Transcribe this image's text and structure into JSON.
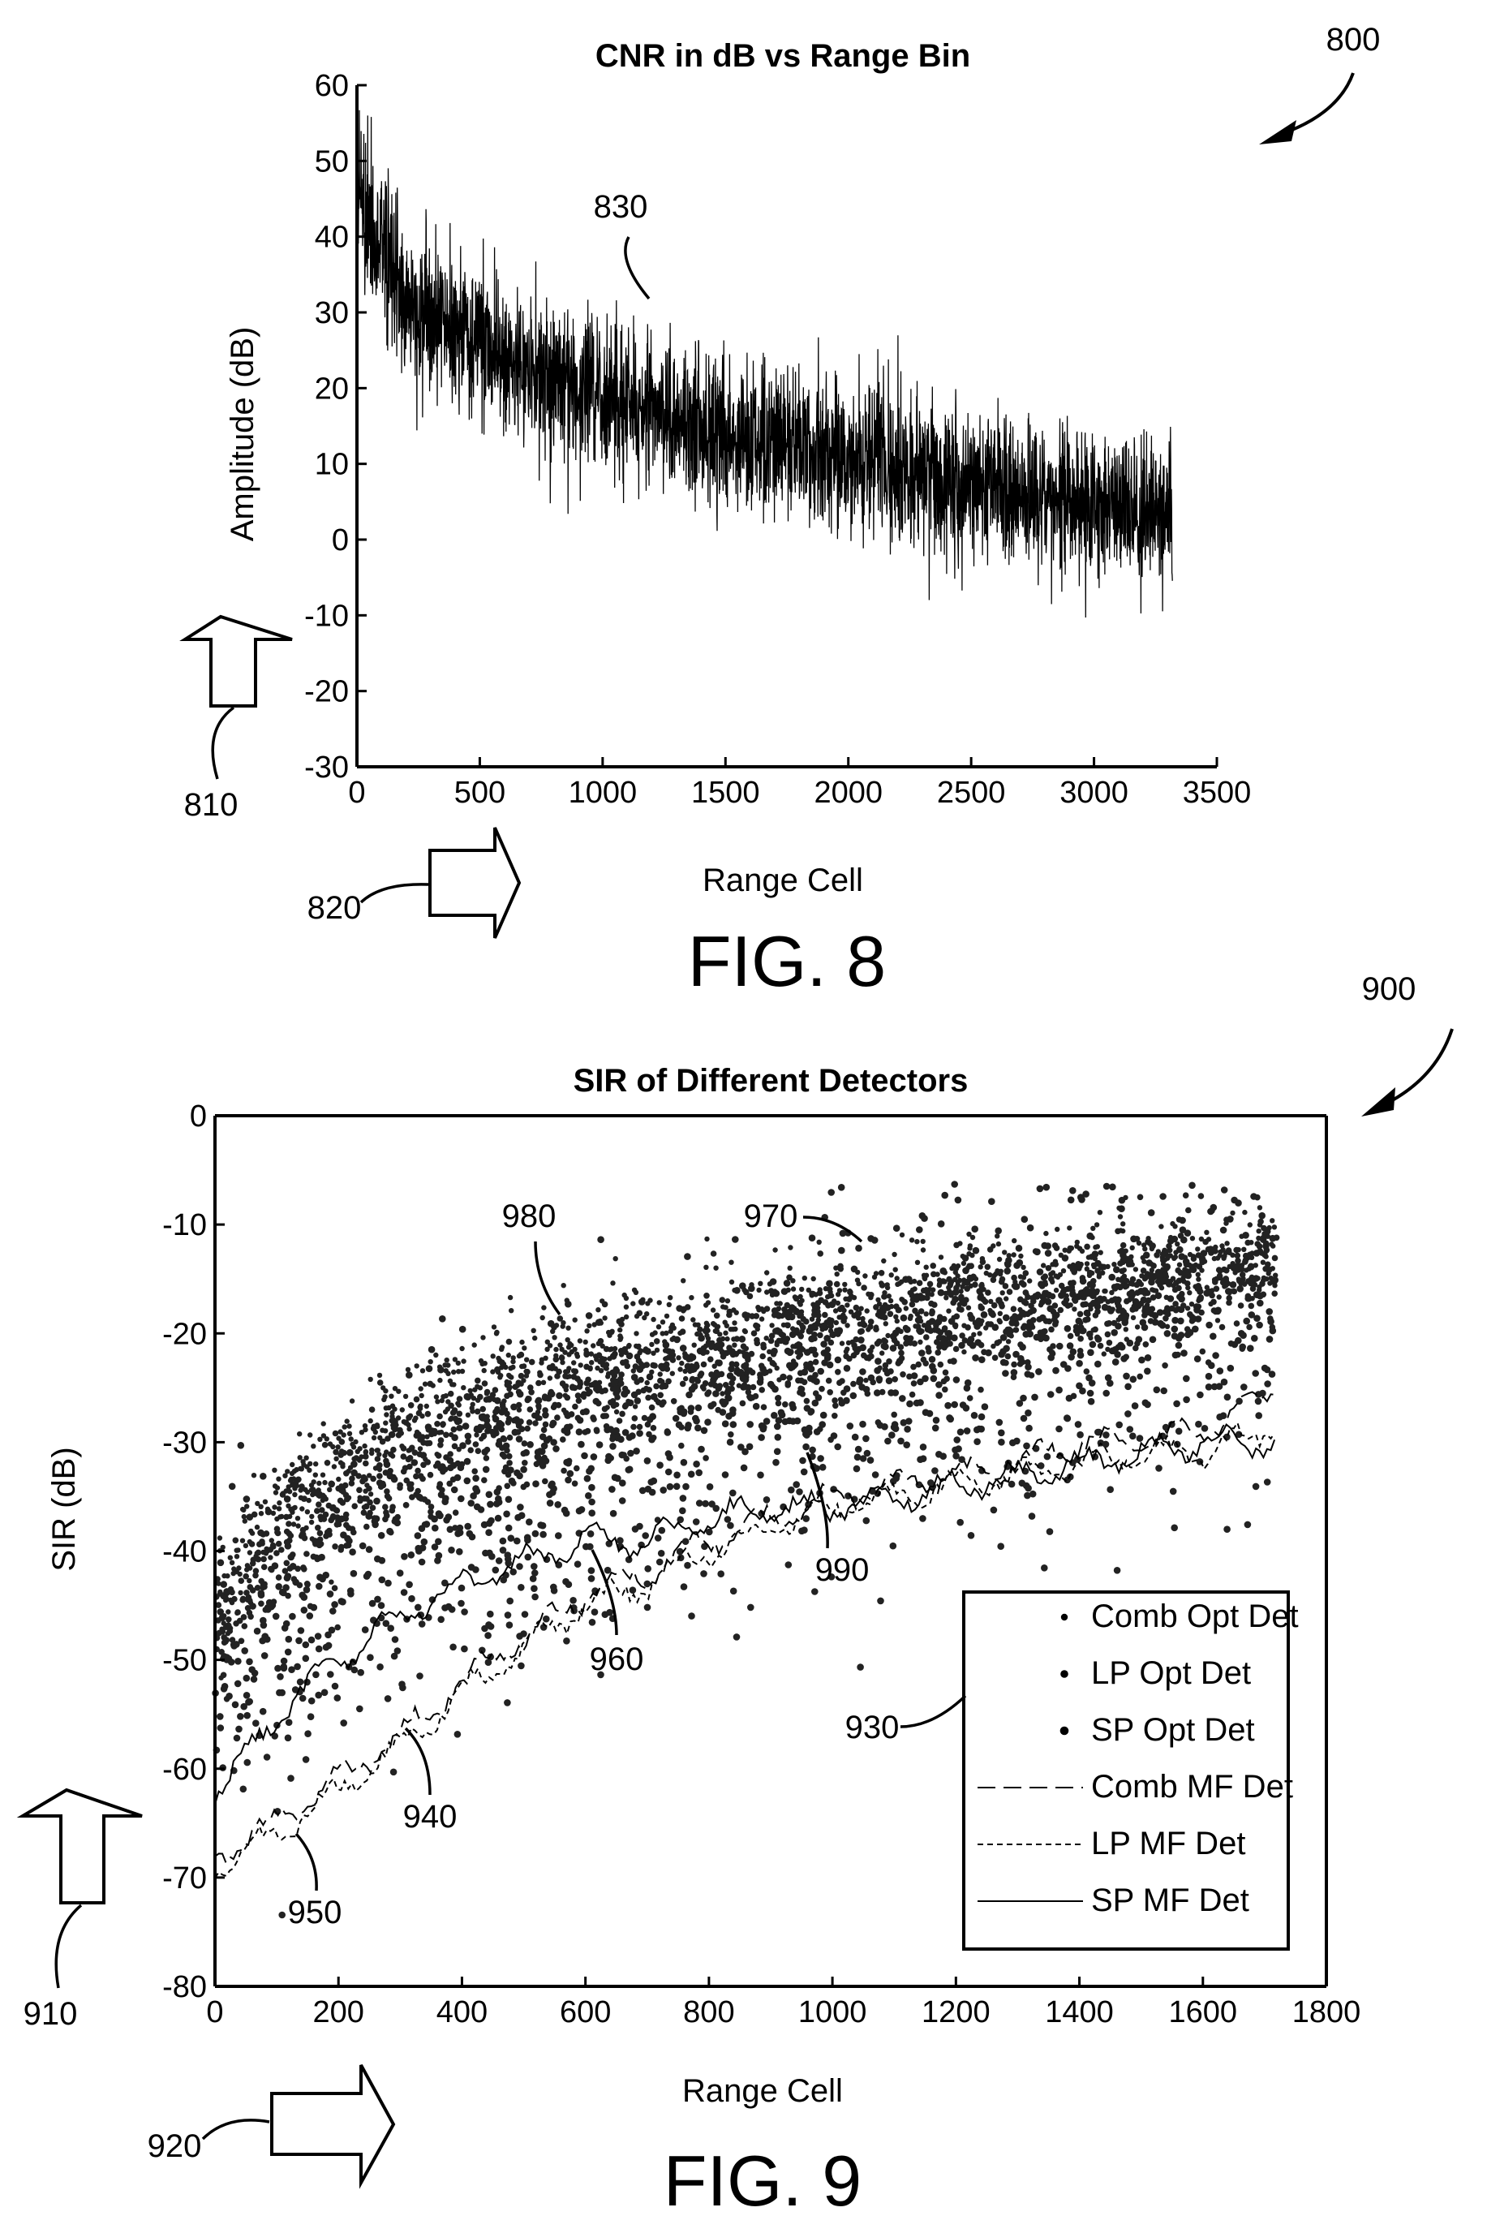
{
  "reference_labels": {
    "fig8_ref": "800",
    "fig8_y_arrow": "810",
    "fig8_x_arrow": "820",
    "fig8_trace": "830",
    "fig9_ref": "900",
    "fig9_y_arrow": "910",
    "fig9_x_arrow": "920",
    "fig9_legend": "930",
    "fig9_a": "940",
    "fig9_b": "950",
    "fig9_c": "960",
    "fig9_d": "970",
    "fig9_e": "980",
    "fig9_f": "990"
  },
  "figure_captions": {
    "fig8": "FIG. 8",
    "fig9": "FIG. 9"
  },
  "chart_data": [
    {
      "type": "line",
      "title": "CNR in dB vs Range Bin",
      "xlabel": "Range Cell",
      "ylabel": "Amplitude (dB)",
      "xlim": [
        0,
        3500
      ],
      "ylim": [
        -30,
        60
      ],
      "xticks": [
        0,
        500,
        1000,
        1500,
        2000,
        2500,
        3000,
        3500
      ],
      "yticks": [
        60,
        50,
        40,
        30,
        20,
        10,
        0,
        -10,
        -20,
        -30
      ],
      "grid": false,
      "series": [
        {
          "color": "#000000",
          "trend_x": [
            0,
            100,
            200,
            400,
            600,
            800,
            1000,
            1200,
            1500,
            1800,
            2100,
            2400,
            2700,
            3000,
            3320
          ],
          "trend_y": [
            46,
            38,
            32,
            27,
            24,
            21,
            19,
            17,
            14,
            12,
            10,
            8,
            6,
            5,
            4
          ],
          "spread_db": 9,
          "n_samples": 3320
        }
      ]
    },
    {
      "type": "scatter",
      "title": "SIR of Different Detectors",
      "xlabel": "Range Cell",
      "ylabel": "SIR (dB)",
      "xlim": [
        0,
        1800
      ],
      "ylim": [
        -80,
        0
      ],
      "xticks": [
        0,
        200,
        400,
        600,
        800,
        1000,
        1200,
        1400,
        1600,
        1800
      ],
      "yticks": [
        0,
        -10,
        -20,
        -30,
        -40,
        -50,
        -60,
        -70,
        -80
      ],
      "grid": false,
      "legend_position": "bottom-right",
      "series": [
        {
          "name": "Comb Opt Det",
          "style": "dots",
          "x": [
            0,
            50,
            100,
            200,
            300,
            400,
            500,
            600,
            800,
            1000,
            1200,
            1400,
            1600,
            1720
          ],
          "y": [
            -46,
            -40,
            -36,
            -32,
            -28,
            -25,
            -23,
            -22,
            -20,
            -18,
            -16,
            -15,
            -14,
            -13
          ],
          "spread_db": 2.5
        },
        {
          "name": "LP Opt Det",
          "style": "dots",
          "x": [
            0,
            100,
            200,
            400,
            600,
            800,
            1000,
            1200,
            1400,
            1600,
            1720
          ],
          "y": [
            -48,
            -40,
            -36,
            -30,
            -26,
            -23,
            -21,
            -19,
            -17,
            -15,
            -14
          ],
          "spread_db": 3
        },
        {
          "name": "SP Opt Det",
          "style": "dots",
          "x": [
            0,
            100,
            200,
            400,
            600,
            800,
            1000,
            1200,
            1400,
            1600,
            1720
          ],
          "y": [
            -52,
            -48,
            -44,
            -38,
            -33,
            -29,
            -26,
            -24,
            -22,
            -20,
            -19
          ],
          "spread_db": 7
        },
        {
          "name": "Comb MF Det",
          "style": "long-dash",
          "x": [
            0,
            100,
            200,
            300,
            400,
            500,
            600,
            700,
            800,
            900,
            1000,
            1100,
            1200,
            1300,
            1400,
            1500,
            1600,
            1700,
            1720
          ],
          "y": [
            -68,
            -65,
            -61,
            -57,
            -52,
            -48,
            -44,
            -42,
            -39,
            -37,
            -35,
            -34,
            -33,
            -32,
            -30,
            -30,
            -29,
            -26,
            -24
          ]
        },
        {
          "name": "LP MF Det",
          "style": "short-dash",
          "x": [
            0,
            100,
            200,
            300,
            400,
            500,
            600,
            700,
            800,
            900,
            1000,
            1100,
            1200,
            1300,
            1400,
            1500,
            1600,
            1700,
            1720
          ],
          "y": [
            -69,
            -66,
            -62,
            -58,
            -53,
            -49,
            -45,
            -43,
            -40,
            -38,
            -36,
            -35,
            -34,
            -33,
            -32,
            -31,
            -31,
            -29,
            -28
          ]
        },
        {
          "name": "SP MF Det",
          "style": "solid",
          "x": [
            0,
            50,
            100,
            200,
            300,
            400,
            500,
            600,
            700,
            800,
            900,
            1000,
            1100,
            1200,
            1300,
            1400,
            1500,
            1600,
            1700,
            1720
          ],
          "y": [
            -62,
            -59,
            -55,
            -50,
            -46,
            -43,
            -41,
            -39,
            -39,
            -37,
            -36,
            -36,
            -35,
            -34,
            -33,
            -32,
            -31,
            -30,
            -30,
            -30
          ]
        }
      ]
    }
  ]
}
